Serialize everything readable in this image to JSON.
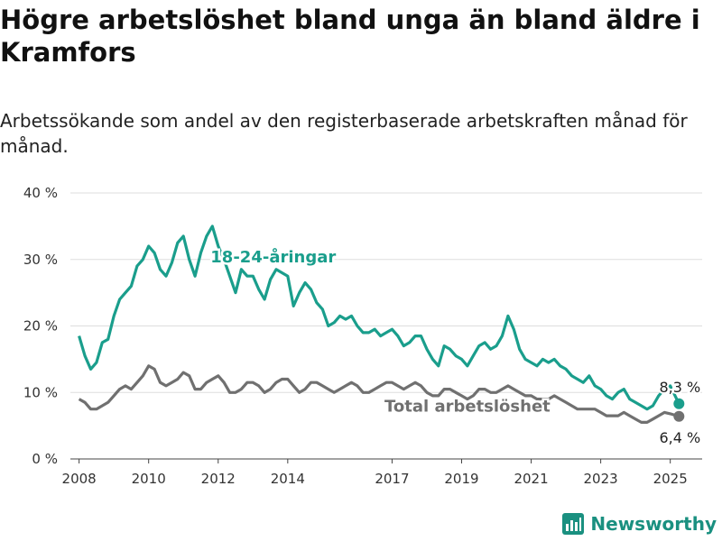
{
  "title": "Högre arbetslöshet bland unga än bland äldre i Kramfors",
  "subtitle": "Arbetssökande som andel av den registerbaserade arbetskraften månad för månad.",
  "brand": "Newsworthy",
  "colors": {
    "youth": "#1a9e8c",
    "total": "#707070",
    "brand": "#1a9080"
  },
  "chart_data": {
    "type": "line",
    "x_ticks": [
      "2008",
      "2010",
      "2012",
      "2014",
      "2017",
      "2019",
      "2021",
      "2023",
      "2025"
    ],
    "y_ticks": [
      "0 %",
      "10 %",
      "20 %",
      "30 %",
      "40 %"
    ],
    "ylim": [
      0,
      40
    ],
    "xlim": [
      "2007-10",
      "2025-12"
    ],
    "grid": true,
    "series": [
      {
        "name": "18-24-åringar",
        "color": "#1a9e8c",
        "label_pos": "2013-08",
        "end_label": "8,3 %",
        "data": [
          [
            "2008-01",
            18.5
          ],
          [
            "2008-03",
            15.5
          ],
          [
            "2008-05",
            13.5
          ],
          [
            "2008-07",
            14.5
          ],
          [
            "2008-09",
            17.5
          ],
          [
            "2008-11",
            18.0
          ],
          [
            "2009-01",
            21.5
          ],
          [
            "2009-03",
            24.0
          ],
          [
            "2009-05",
            25.0
          ],
          [
            "2009-07",
            26.0
          ],
          [
            "2009-09",
            29.0
          ],
          [
            "2009-11",
            30.0
          ],
          [
            "2010-01",
            32.0
          ],
          [
            "2010-03",
            31.0
          ],
          [
            "2010-05",
            28.5
          ],
          [
            "2010-07",
            27.5
          ],
          [
            "2010-09",
            29.5
          ],
          [
            "2010-11",
            32.5
          ],
          [
            "2011-01",
            33.5
          ],
          [
            "2011-03",
            30.0
          ],
          [
            "2011-05",
            27.5
          ],
          [
            "2011-07",
            31.0
          ],
          [
            "2011-09",
            33.5
          ],
          [
            "2011-11",
            35.0
          ],
          [
            "2012-01",
            32.0
          ],
          [
            "2012-03",
            30.0
          ],
          [
            "2012-05",
            27.5
          ],
          [
            "2012-07",
            25.0
          ],
          [
            "2012-09",
            28.5
          ],
          [
            "2012-11",
            27.5
          ],
          [
            "2013-01",
            27.5
          ],
          [
            "2013-03",
            25.5
          ],
          [
            "2013-05",
            24.0
          ],
          [
            "2013-07",
            27.0
          ],
          [
            "2013-09",
            28.5
          ],
          [
            "2013-11",
            28.0
          ],
          [
            "2014-01",
            27.5
          ],
          [
            "2014-03",
            23.0
          ],
          [
            "2014-05",
            25.0
          ],
          [
            "2014-07",
            26.5
          ],
          [
            "2014-09",
            25.5
          ],
          [
            "2014-11",
            23.5
          ],
          [
            "2015-01",
            22.5
          ],
          [
            "2015-03",
            20.0
          ],
          [
            "2015-05",
            20.5
          ],
          [
            "2015-07",
            21.5
          ],
          [
            "2015-09",
            21.0
          ],
          [
            "2015-11",
            21.5
          ],
          [
            "2016-01",
            20.0
          ],
          [
            "2016-03",
            19.0
          ],
          [
            "2016-05",
            19.0
          ],
          [
            "2016-07",
            19.5
          ],
          [
            "2016-09",
            18.5
          ],
          [
            "2016-11",
            19.0
          ],
          [
            "2017-01",
            19.5
          ],
          [
            "2017-03",
            18.5
          ],
          [
            "2017-05",
            17.0
          ],
          [
            "2017-07",
            17.5
          ],
          [
            "2017-09",
            18.5
          ],
          [
            "2017-11",
            18.5
          ],
          [
            "2018-01",
            16.5
          ],
          [
            "2018-03",
            15.0
          ],
          [
            "2018-05",
            14.0
          ],
          [
            "2018-07",
            17.0
          ],
          [
            "2018-09",
            16.5
          ],
          [
            "2018-11",
            15.5
          ],
          [
            "2019-01",
            15.0
          ],
          [
            "2019-03",
            14.0
          ],
          [
            "2019-05",
            15.5
          ],
          [
            "2019-07",
            17.0
          ],
          [
            "2019-09",
            17.5
          ],
          [
            "2019-11",
            16.5
          ],
          [
            "2020-01",
            17.0
          ],
          [
            "2020-03",
            18.5
          ],
          [
            "2020-05",
            21.5
          ],
          [
            "2020-07",
            19.5
          ],
          [
            "2020-09",
            16.5
          ],
          [
            "2020-11",
            15.0
          ],
          [
            "2021-01",
            14.5
          ],
          [
            "2021-03",
            14.0
          ],
          [
            "2021-05",
            15.0
          ],
          [
            "2021-07",
            14.5
          ],
          [
            "2021-09",
            15.0
          ],
          [
            "2021-11",
            14.0
          ],
          [
            "2022-01",
            13.5
          ],
          [
            "2022-03",
            12.5
          ],
          [
            "2022-05",
            12.0
          ],
          [
            "2022-07",
            11.5
          ],
          [
            "2022-09",
            12.5
          ],
          [
            "2022-11",
            11.0
          ],
          [
            "2023-01",
            10.5
          ],
          [
            "2023-03",
            9.5
          ],
          [
            "2023-05",
            9.0
          ],
          [
            "2023-07",
            10.0
          ],
          [
            "2023-09",
            10.5
          ],
          [
            "2023-11",
            9.0
          ],
          [
            "2024-01",
            8.5
          ],
          [
            "2024-03",
            8.0
          ],
          [
            "2024-05",
            7.5
          ],
          [
            "2024-07",
            8.0
          ],
          [
            "2024-09",
            9.5
          ],
          [
            "2024-11",
            10.5
          ],
          [
            "2025-01",
            11.0
          ],
          [
            "2025-04",
            8.3
          ]
        ]
      },
      {
        "name": "Total arbetslöshet",
        "color": "#707070",
        "label_pos": "2019-03",
        "end_label": "6,4 %",
        "data": [
          [
            "2008-01",
            9.0
          ],
          [
            "2008-03",
            8.5
          ],
          [
            "2008-05",
            7.5
          ],
          [
            "2008-07",
            7.5
          ],
          [
            "2008-09",
            8.0
          ],
          [
            "2008-11",
            8.5
          ],
          [
            "2009-01",
            9.5
          ],
          [
            "2009-03",
            10.5
          ],
          [
            "2009-05",
            11.0
          ],
          [
            "2009-07",
            10.5
          ],
          [
            "2009-09",
            11.5
          ],
          [
            "2009-11",
            12.5
          ],
          [
            "2010-01",
            14.0
          ],
          [
            "2010-03",
            13.5
          ],
          [
            "2010-05",
            11.5
          ],
          [
            "2010-07",
            11.0
          ],
          [
            "2010-09",
            11.5
          ],
          [
            "2010-11",
            12.0
          ],
          [
            "2011-01",
            13.0
          ],
          [
            "2011-03",
            12.5
          ],
          [
            "2011-05",
            10.5
          ],
          [
            "2011-07",
            10.5
          ],
          [
            "2011-09",
            11.5
          ],
          [
            "2011-11",
            12.0
          ],
          [
            "2012-01",
            12.5
          ],
          [
            "2012-03",
            11.5
          ],
          [
            "2012-05",
            10.0
          ],
          [
            "2012-07",
            10.0
          ],
          [
            "2012-09",
            10.5
          ],
          [
            "2012-11",
            11.5
          ],
          [
            "2013-01",
            11.5
          ],
          [
            "2013-03",
            11.0
          ],
          [
            "2013-05",
            10.0
          ],
          [
            "2013-07",
            10.5
          ],
          [
            "2013-09",
            11.5
          ],
          [
            "2013-11",
            12.0
          ],
          [
            "2014-01",
            12.0
          ],
          [
            "2014-03",
            11.0
          ],
          [
            "2014-05",
            10.0
          ],
          [
            "2014-07",
            10.5
          ],
          [
            "2014-09",
            11.5
          ],
          [
            "2014-11",
            11.5
          ],
          [
            "2015-01",
            11.0
          ],
          [
            "2015-03",
            10.5
          ],
          [
            "2015-05",
            10.0
          ],
          [
            "2015-07",
            10.5
          ],
          [
            "2015-09",
            11.0
          ],
          [
            "2015-11",
            11.5
          ],
          [
            "2016-01",
            11.0
          ],
          [
            "2016-03",
            10.0
          ],
          [
            "2016-05",
            10.0
          ],
          [
            "2016-07",
            10.5
          ],
          [
            "2016-09",
            11.0
          ],
          [
            "2016-11",
            11.5
          ],
          [
            "2017-01",
            11.5
          ],
          [
            "2017-03",
            11.0
          ],
          [
            "2017-05",
            10.5
          ],
          [
            "2017-07",
            11.0
          ],
          [
            "2017-09",
            11.5
          ],
          [
            "2017-11",
            11.0
          ],
          [
            "2018-01",
            10.0
          ],
          [
            "2018-03",
            9.5
          ],
          [
            "2018-05",
            9.5
          ],
          [
            "2018-07",
            10.5
          ],
          [
            "2018-09",
            10.5
          ],
          [
            "2018-11",
            10.0
          ],
          [
            "2019-01",
            9.5
          ],
          [
            "2019-03",
            9.0
          ],
          [
            "2019-05",
            9.5
          ],
          [
            "2019-07",
            10.5
          ],
          [
            "2019-09",
            10.5
          ],
          [
            "2019-11",
            10.0
          ],
          [
            "2020-01",
            10.0
          ],
          [
            "2020-03",
            10.5
          ],
          [
            "2020-05",
            11.0
          ],
          [
            "2020-07",
            10.5
          ],
          [
            "2020-09",
            10.0
          ],
          [
            "2020-11",
            9.5
          ],
          [
            "2021-01",
            9.5
          ],
          [
            "2021-03",
            9.0
          ],
          [
            "2021-05",
            9.0
          ],
          [
            "2021-07",
            9.0
          ],
          [
            "2021-09",
            9.5
          ],
          [
            "2021-11",
            9.0
          ],
          [
            "2022-01",
            8.5
          ],
          [
            "2022-03",
            8.0
          ],
          [
            "2022-05",
            7.5
          ],
          [
            "2022-07",
            7.5
          ],
          [
            "2022-09",
            7.5
          ],
          [
            "2022-11",
            7.5
          ],
          [
            "2023-01",
            7.0
          ],
          [
            "2023-03",
            6.5
          ],
          [
            "2023-05",
            6.5
          ],
          [
            "2023-07",
            6.5
          ],
          [
            "2023-09",
            7.0
          ],
          [
            "2023-11",
            6.5
          ],
          [
            "2024-01",
            6.0
          ],
          [
            "2024-03",
            5.5
          ],
          [
            "2024-05",
            5.5
          ],
          [
            "2024-07",
            6.0
          ],
          [
            "2024-09",
            6.5
          ],
          [
            "2024-11",
            7.0
          ],
          [
            "2025-01",
            6.8
          ],
          [
            "2025-04",
            6.4
          ]
        ]
      }
    ]
  }
}
